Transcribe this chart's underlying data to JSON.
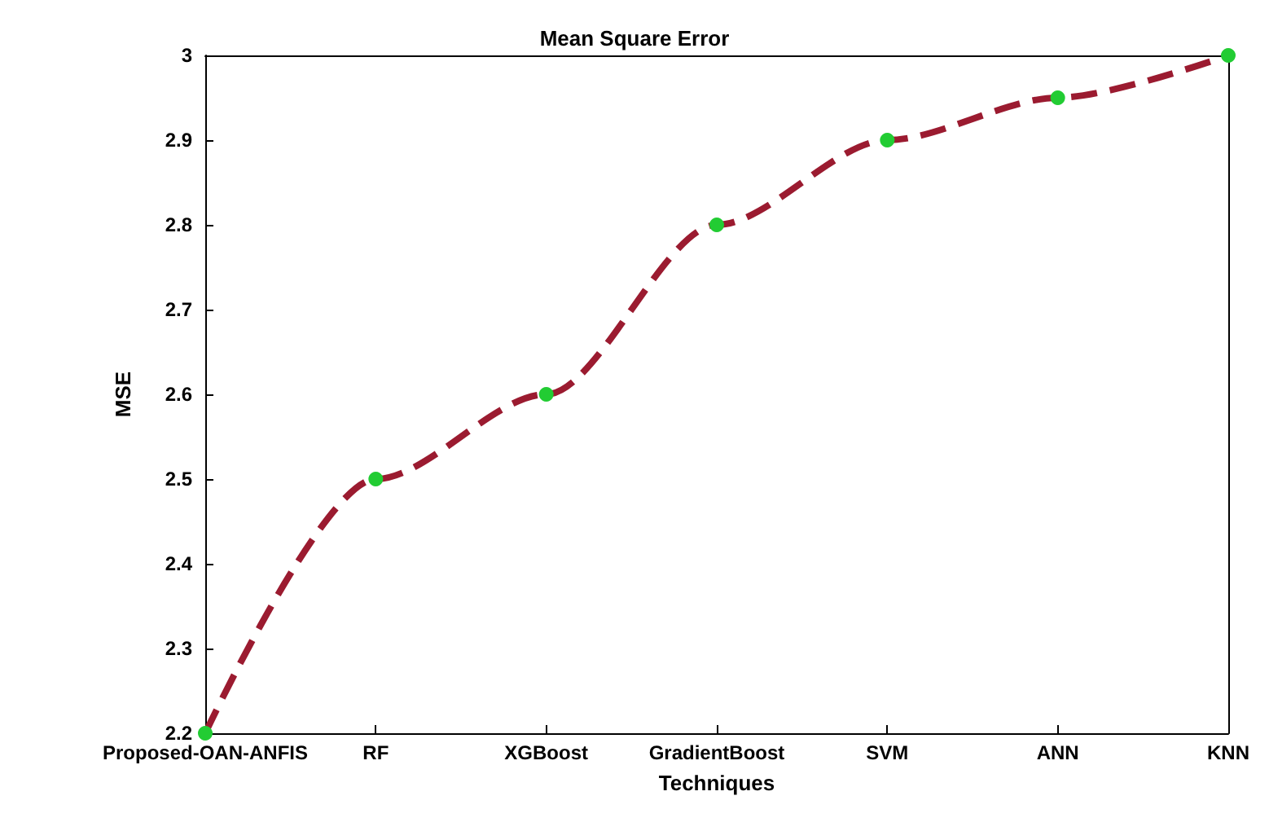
{
  "chart_data": {
    "type": "line",
    "title": "Mean Square Error",
    "xlabel": "Techniques",
    "ylabel": "MSE",
    "categories": [
      "Proposed-OAN-ANFIS",
      "RF",
      "XGBoost",
      "GradientBoost",
      "SVM",
      "ANN",
      "KNN"
    ],
    "series": [
      {
        "color": "#9b1b30",
        "colors": [
          "#22cc33",
          "#22cc33",
          "#22cc33",
          "#22cc33",
          "#22cc33",
          "#22cc33",
          "#22cc33"
        ],
        "values": [
          2.2,
          2.5,
          2.6,
          2.8,
          2.9,
          2.95,
          3.0
        ]
      }
    ],
    "marker": "circle",
    "line_style": "dashed",
    "ylim": [
      2.2,
      3
    ],
    "yticks": [
      2.2,
      2.3,
      2.4,
      2.5,
      2.6,
      2.7,
      2.8,
      2.9,
      3
    ],
    "grid": false
  }
}
